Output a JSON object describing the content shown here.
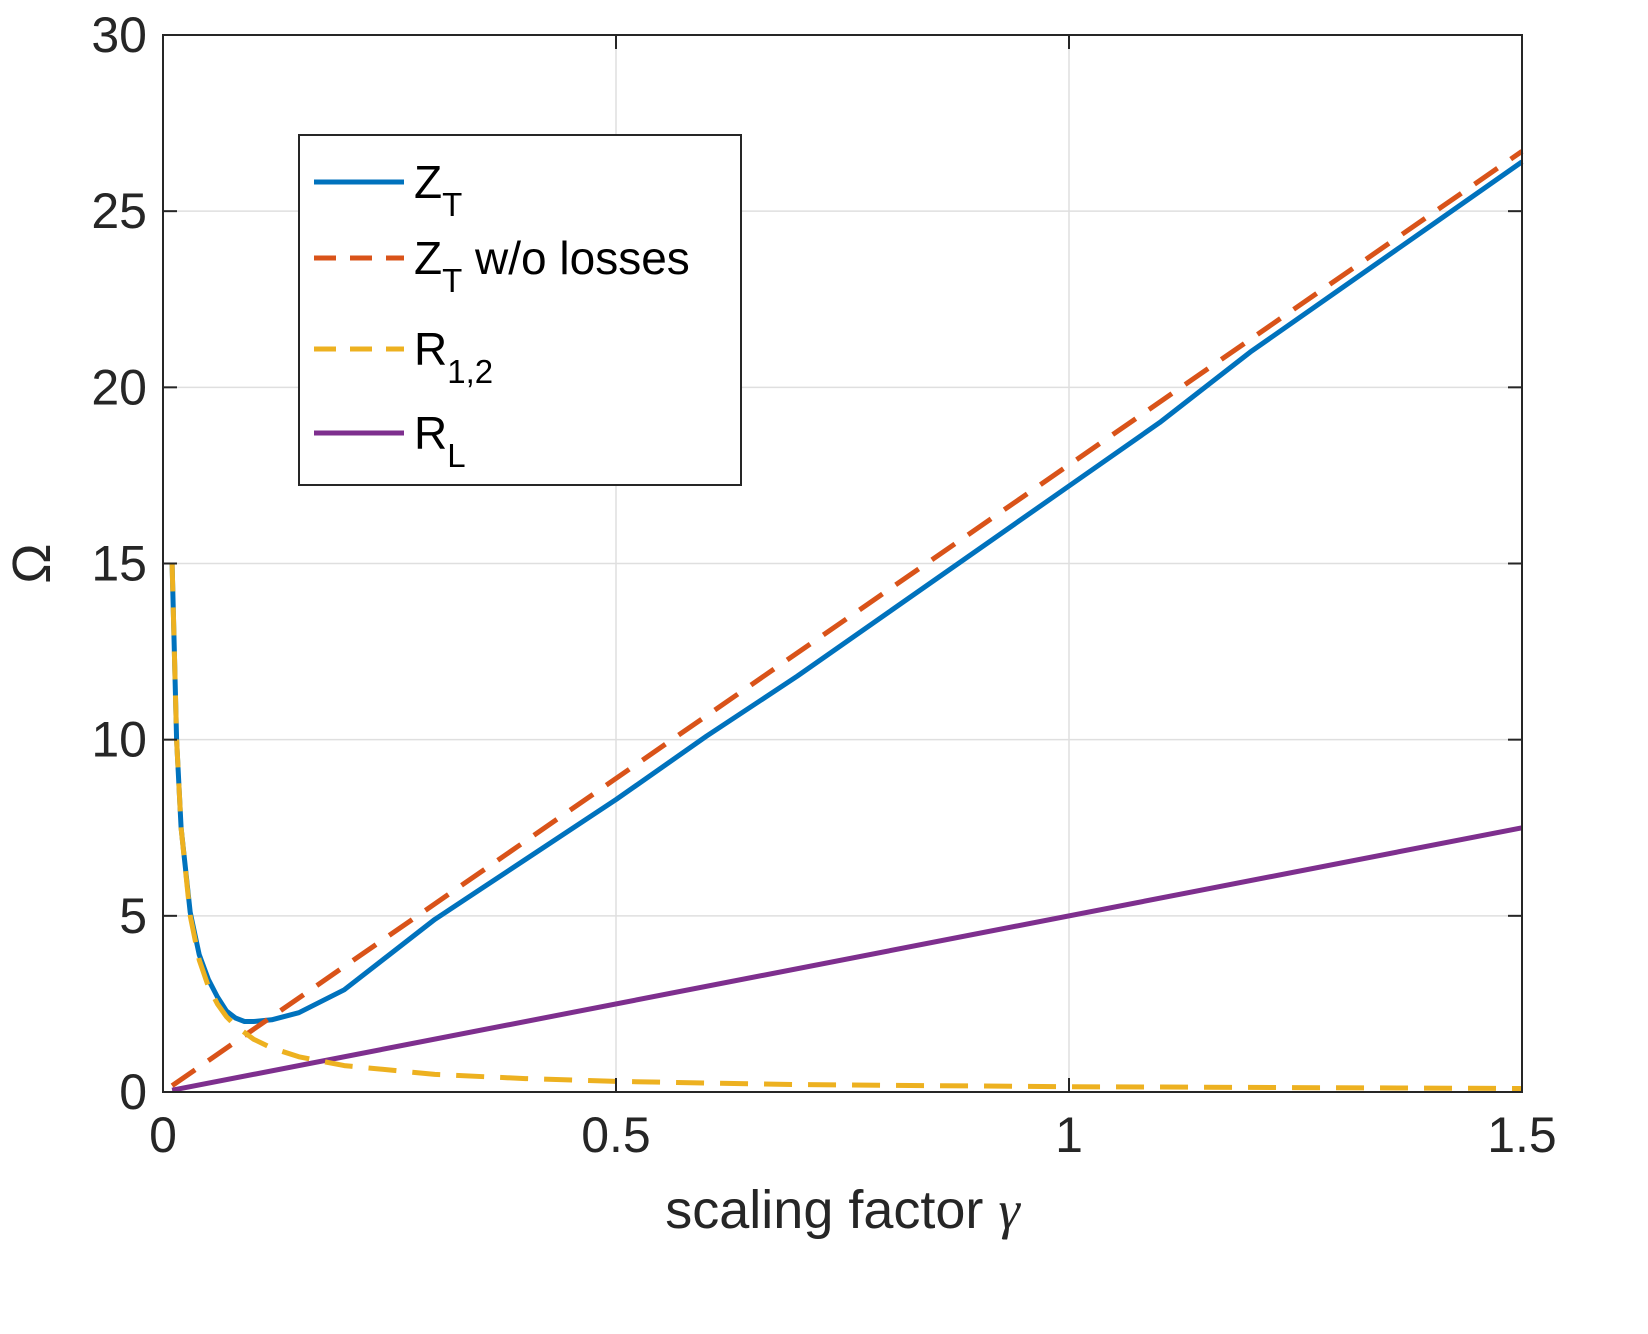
{
  "chart_data": {
    "type": "line",
    "title": "",
    "xlabel": "scaling factor",
    "xlabel_symbol": "γ",
    "ylabel": "Ω",
    "xlim": [
      0,
      1.5
    ],
    "ylim": [
      0,
      30
    ],
    "xticks": [
      0,
      0.5,
      1,
      1.5
    ],
    "xtick_labels": [
      "0",
      "0.5",
      "1",
      "1.5"
    ],
    "yticks": [
      0,
      5,
      10,
      15,
      20,
      25,
      30
    ],
    "ytick_labels": [
      "0",
      "5",
      "10",
      "15",
      "20",
      "25",
      "30"
    ],
    "grid": true,
    "legend_position": "upper-left",
    "series": [
      {
        "name": "Z_T",
        "label_main": "Z",
        "label_sub": "T",
        "label_suffix": "",
        "color": "#0072BD",
        "style": "solid",
        "x": [
          0.01,
          0.015,
          0.02,
          0.03,
          0.04,
          0.05,
          0.06,
          0.07,
          0.08,
          0.09,
          0.1,
          0.12,
          0.15,
          0.2,
          0.25,
          0.3,
          0.4,
          0.5,
          0.6,
          0.7,
          0.8,
          0.9,
          1.0,
          1.1,
          1.2,
          1.3,
          1.4,
          1.5
        ],
        "y": [
          15.0,
          10.0,
          7.5,
          5.1,
          3.9,
          3.2,
          2.7,
          2.3,
          2.1,
          2.0,
          2.0,
          2.05,
          2.25,
          2.9,
          3.9,
          4.9,
          6.6,
          8.3,
          10.1,
          11.8,
          13.6,
          15.4,
          17.2,
          19.0,
          21.0,
          22.8,
          24.6,
          26.4
        ]
      },
      {
        "name": "Z_T w/o losses",
        "label_main": "Z",
        "label_sub": "T",
        "label_suffix": " w/o losses",
        "color": "#D95319",
        "style": "dashed",
        "x": [
          0.01,
          1.5
        ],
        "y": [
          0.18,
          26.7
        ]
      },
      {
        "name": "R_1,2",
        "label_main": "R",
        "label_sub": "1,2",
        "label_suffix": "",
        "color": "#EDB120",
        "style": "dashed",
        "x": [
          0.01,
          0.015,
          0.02,
          0.03,
          0.04,
          0.05,
          0.06,
          0.07,
          0.08,
          0.1,
          0.12,
          0.15,
          0.2,
          0.3,
          0.4,
          0.5,
          0.7,
          1.0,
          1.5
        ],
        "y": [
          15.0,
          10.0,
          7.5,
          5.0,
          3.75,
          3.0,
          2.5,
          2.14,
          1.88,
          1.5,
          1.25,
          1.0,
          0.75,
          0.5,
          0.38,
          0.3,
          0.21,
          0.15,
          0.1
        ]
      },
      {
        "name": "R_L",
        "label_main": "R",
        "label_sub": "L",
        "label_suffix": "",
        "color": "#7E2F8E",
        "style": "solid",
        "x": [
          0.01,
          1.5
        ],
        "y": [
          0.05,
          7.5
        ]
      }
    ]
  }
}
